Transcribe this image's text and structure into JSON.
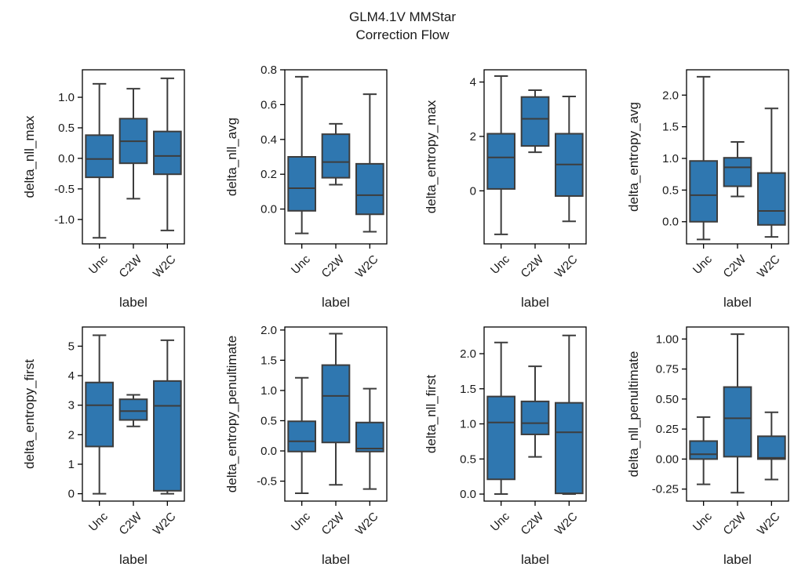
{
  "figure": {
    "title_line1": "GLM4.1V MMStar",
    "title_line2": "Correction Flow",
    "box_color": "#2f77b0",
    "edge_color": "#3d3d3d"
  },
  "chart_data": [
    {
      "type": "box",
      "title": "",
      "xlabel": "label",
      "ylabel": "delta_nll_max",
      "categories": [
        "Unc",
        "C2W",
        "W2C"
      ],
      "yticks": [
        "-1.0",
        "-0.5",
        "0.0",
        "0.5",
        "1.0"
      ],
      "ylim": [
        -1.4,
        1.45
      ],
      "boxes": [
        {
          "whislo": -1.3,
          "q1": -0.31,
          "med": -0.01,
          "q3": 0.38,
          "whishi": 1.22
        },
        {
          "whislo": -0.66,
          "q1": -0.08,
          "med": 0.28,
          "q3": 0.65,
          "whishi": 1.14
        },
        {
          "whislo": -1.18,
          "q1": -0.26,
          "med": 0.04,
          "q3": 0.44,
          "whishi": 1.31
        }
      ]
    },
    {
      "type": "box",
      "title": "",
      "xlabel": "label",
      "ylabel": "delta_nll_avg",
      "categories": [
        "Unc",
        "C2W",
        "W2C"
      ],
      "yticks": [
        "0.0",
        "0.2",
        "0.4",
        "0.6",
        "0.8"
      ],
      "ylim": [
        -0.2,
        0.8
      ],
      "boxes": [
        {
          "whislo": -0.14,
          "q1": -0.01,
          "med": 0.12,
          "q3": 0.3,
          "whishi": 0.76
        },
        {
          "whislo": 0.14,
          "q1": 0.18,
          "med": 0.27,
          "q3": 0.43,
          "whishi": 0.49
        },
        {
          "whislo": -0.13,
          "q1": -0.03,
          "med": 0.08,
          "q3": 0.26,
          "whishi": 0.66
        }
      ]
    },
    {
      "type": "box",
      "title": "",
      "xlabel": "label",
      "ylabel": "delta_entropy_max",
      "categories": [
        "Unc",
        "C2W",
        "W2C"
      ],
      "yticks": [
        "0",
        "2",
        "4"
      ],
      "ylim": [
        -1.95,
        4.45
      ],
      "boxes": [
        {
          "whislo": -1.6,
          "q1": 0.07,
          "med": 1.23,
          "q3": 2.1,
          "whishi": 4.22
        },
        {
          "whislo": 1.42,
          "q1": 1.65,
          "med": 2.65,
          "q3": 3.45,
          "whishi": 3.7
        },
        {
          "whislo": -1.12,
          "q1": -0.19,
          "med": 0.97,
          "q3": 2.1,
          "whishi": 3.47
        }
      ]
    },
    {
      "type": "box",
      "title": "",
      "xlabel": "label",
      "ylabel": "delta_entropy_avg",
      "categories": [
        "Unc",
        "C2W",
        "W2C"
      ],
      "yticks": [
        "0.0",
        "0.5",
        "1.0",
        "1.5",
        "2.0"
      ],
      "ylim": [
        -0.35,
        2.4
      ],
      "boxes": [
        {
          "whislo": -0.28,
          "q1": 0.0,
          "med": 0.42,
          "q3": 0.96,
          "whishi": 2.29
        },
        {
          "whislo": 0.4,
          "q1": 0.56,
          "med": 0.86,
          "q3": 1.01,
          "whishi": 1.26
        },
        {
          "whislo": -0.24,
          "q1": -0.05,
          "med": 0.17,
          "q3": 0.77,
          "whishi": 1.79
        }
      ]
    },
    {
      "type": "box",
      "title": "",
      "xlabel": "label",
      "ylabel": "delta_entropy_first",
      "categories": [
        "Unc",
        "C2W",
        "W2C"
      ],
      "yticks": [
        "0",
        "1",
        "2",
        "3",
        "4",
        "5"
      ],
      "ylim": [
        -0.25,
        5.65
      ],
      "boxes": [
        {
          "whislo": 0.0,
          "q1": 1.6,
          "med": 3.0,
          "q3": 3.77,
          "whishi": 5.37
        },
        {
          "whislo": 2.28,
          "q1": 2.5,
          "med": 2.8,
          "q3": 3.2,
          "whishi": 3.35
        },
        {
          "whislo": 0.0,
          "q1": 0.1,
          "med": 2.98,
          "q3": 3.82,
          "whishi": 5.2
        }
      ]
    },
    {
      "type": "box",
      "title": "",
      "xlabel": "label",
      "ylabel": "delta_entropy_penultimate",
      "categories": [
        "Unc",
        "C2W",
        "W2C"
      ],
      "yticks": [
        "-0.5",
        "0.0",
        "0.5",
        "1.0",
        "1.5",
        "2.0"
      ],
      "ylim": [
        -0.83,
        2.05
      ],
      "boxes": [
        {
          "whislo": -0.7,
          "q1": -0.01,
          "med": 0.16,
          "q3": 0.49,
          "whishi": 1.21
        },
        {
          "whislo": -0.56,
          "q1": 0.14,
          "med": 0.91,
          "q3": 1.42,
          "whishi": 1.94
        },
        {
          "whislo": -0.63,
          "q1": -0.01,
          "med": 0.04,
          "q3": 0.47,
          "whishi": 1.03
        }
      ]
    },
    {
      "type": "box",
      "title": "",
      "xlabel": "label",
      "ylabel": "delta_nll_first",
      "categories": [
        "Unc",
        "C2W",
        "W2C"
      ],
      "yticks": [
        "0.0",
        "0.5",
        "1.0",
        "1.5",
        "2.0"
      ],
      "ylim": [
        -0.1,
        2.38
      ],
      "boxes": [
        {
          "whislo": 0.0,
          "q1": 0.21,
          "med": 1.02,
          "q3": 1.39,
          "whishi": 2.16
        },
        {
          "whislo": 0.53,
          "q1": 0.85,
          "med": 1.01,
          "q3": 1.32,
          "whishi": 1.82
        },
        {
          "whislo": 0.0,
          "q1": 0.01,
          "med": 0.88,
          "q3": 1.3,
          "whishi": 2.26
        }
      ]
    },
    {
      "type": "box",
      "title": "",
      "xlabel": "label",
      "ylabel": "delta_nll_penultimate",
      "categories": [
        "Unc",
        "C2W",
        "W2C"
      ],
      "yticks": [
        "-0.25",
        "0.00",
        "0.25",
        "0.50",
        "0.75",
        "1.00"
      ],
      "ylim": [
        -0.35,
        1.1
      ],
      "boxes": [
        {
          "whislo": -0.21,
          "q1": 0.0,
          "med": 0.04,
          "q3": 0.15,
          "whishi": 0.35
        },
        {
          "whislo": -0.28,
          "q1": 0.02,
          "med": 0.34,
          "q3": 0.6,
          "whishi": 1.04
        },
        {
          "whislo": -0.17,
          "q1": 0.0,
          "med": 0.01,
          "q3": 0.19,
          "whishi": 0.39
        }
      ]
    }
  ]
}
